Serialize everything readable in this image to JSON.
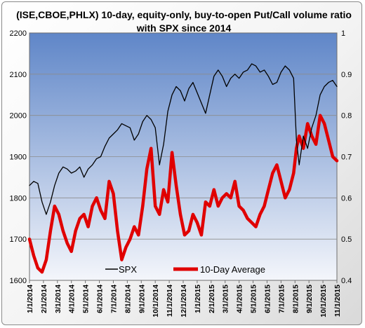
{
  "chart_data": {
    "type": "line",
    "title_line1": "(ISE,CBOE,PHLX) 10-day, equity-only, buy-to-open Put/Call volume ratio",
    "title_line2": "with SPX since 2014",
    "left_axis": {
      "ylim": [
        1600,
        2200
      ],
      "ticks": [
        "1600",
        "1700",
        "1800",
        "1900",
        "2000",
        "2100",
        "2200"
      ]
    },
    "right_axis": {
      "ylim": [
        0.4,
        1.0
      ],
      "ticks": [
        "0.4",
        "0.5",
        "0.6",
        "0.7",
        "0.8",
        "0.9",
        "1"
      ]
    },
    "x_range": [
      0,
      22
    ],
    "x_ticks": [
      "1/1/2014",
      "2/1/2014",
      "3/1/2014",
      "4/1/2014",
      "5/1/2014",
      "6/1/2014",
      "7/1/2014",
      "8/1/2014",
      "9/1/2014",
      "10/1/2014",
      "11/1/2014",
      "12/1/2014",
      "1/1/2015",
      "2/1/2015",
      "3/1/2015",
      "4/1/2015",
      "5/1/2015",
      "6/1/2015",
      "7/1/2015",
      "8/1/2015",
      "9/1/2015",
      "10/1/2015",
      "11/1/2015"
    ],
    "grid": true,
    "legend_position": "bottom-center",
    "plot_background": [
      "#f4f6fb",
      "#5f86c8"
    ],
    "series": [
      {
        "name": "SPX",
        "axis": "left",
        "color": "#000000",
        "x": [
          0,
          0.3,
          0.6,
          0.9,
          1.2,
          1.5,
          1.8,
          2.1,
          2.4,
          2.7,
          3.0,
          3.3,
          3.6,
          3.9,
          4.2,
          4.5,
          4.8,
          5.1,
          5.4,
          5.7,
          6.0,
          6.3,
          6.6,
          6.9,
          7.2,
          7.5,
          7.8,
          8.1,
          8.4,
          8.7,
          9.0,
          9.3,
          9.6,
          9.9,
          10.2,
          10.5,
          10.8,
          11.1,
          11.4,
          11.7,
          12.0,
          12.3,
          12.6,
          12.9,
          13.2,
          13.5,
          13.8,
          14.1,
          14.4,
          14.7,
          15.0,
          15.3,
          15.6,
          15.9,
          16.2,
          16.5,
          16.8,
          17.1,
          17.4,
          17.7,
          18.0,
          18.3,
          18.6,
          18.9,
          19.1,
          19.3,
          19.6,
          19.9,
          20.2,
          20.5,
          20.8,
          21.1,
          21.4,
          21.7,
          22.0
        ],
        "values": [
          1830,
          1840,
          1835,
          1790,
          1760,
          1790,
          1830,
          1860,
          1875,
          1870,
          1860,
          1865,
          1875,
          1850,
          1870,
          1880,
          1895,
          1900,
          1925,
          1945,
          1955,
          1965,
          1980,
          1975,
          1970,
          1940,
          1955,
          1985,
          2000,
          1990,
          1970,
          1880,
          1930,
          2010,
          2050,
          2070,
          2060,
          2035,
          2065,
          2080,
          2055,
          2030,
          2005,
          2050,
          2095,
          2110,
          2095,
          2070,
          2090,
          2100,
          2090,
          2105,
          2110,
          2125,
          2120,
          2105,
          2110,
          2095,
          2075,
          2080,
          2105,
          2120,
          2110,
          2090,
          1940,
          1880,
          1950,
          1920,
          1970,
          2000,
          2050,
          2070,
          2080,
          2085,
          2070
        ]
      },
      {
        "name": "10-Day Average",
        "axis": "right",
        "color": "#e00000",
        "x": [
          0,
          0.3,
          0.6,
          0.9,
          1.2,
          1.5,
          1.8,
          2.1,
          2.4,
          2.7,
          3.0,
          3.3,
          3.6,
          3.9,
          4.2,
          4.5,
          4.8,
          5.1,
          5.4,
          5.7,
          6.0,
          6.3,
          6.6,
          6.9,
          7.2,
          7.5,
          7.8,
          8.1,
          8.4,
          8.7,
          9.0,
          9.3,
          9.6,
          9.9,
          10.2,
          10.5,
          10.8,
          11.1,
          11.4,
          11.7,
          12.0,
          12.3,
          12.6,
          12.9,
          13.2,
          13.5,
          13.8,
          14.1,
          14.4,
          14.7,
          15.0,
          15.3,
          15.6,
          15.9,
          16.2,
          16.5,
          16.8,
          17.1,
          17.4,
          17.7,
          18.0,
          18.3,
          18.6,
          18.9,
          19.1,
          19.3,
          19.6,
          19.9,
          20.2,
          20.5,
          20.8,
          21.1,
          21.4,
          21.7,
          22.0
        ],
        "values": [
          0.5,
          0.46,
          0.43,
          0.42,
          0.45,
          0.52,
          0.58,
          0.56,
          0.52,
          0.49,
          0.47,
          0.52,
          0.55,
          0.56,
          0.53,
          0.58,
          0.6,
          0.57,
          0.55,
          0.64,
          0.61,
          0.52,
          0.45,
          0.48,
          0.5,
          0.53,
          0.51,
          0.58,
          0.67,
          0.72,
          0.58,
          0.56,
          0.62,
          0.59,
          0.71,
          0.63,
          0.56,
          0.51,
          0.52,
          0.56,
          0.54,
          0.51,
          0.59,
          0.58,
          0.62,
          0.58,
          0.6,
          0.61,
          0.6,
          0.64,
          0.58,
          0.57,
          0.55,
          0.54,
          0.53,
          0.56,
          0.58,
          0.62,
          0.66,
          0.68,
          0.64,
          0.6,
          0.62,
          0.66,
          0.72,
          0.75,
          0.72,
          0.78,
          0.75,
          0.73,
          0.8,
          0.78,
          0.74,
          0.7,
          0.69
        ]
      }
    ]
  }
}
